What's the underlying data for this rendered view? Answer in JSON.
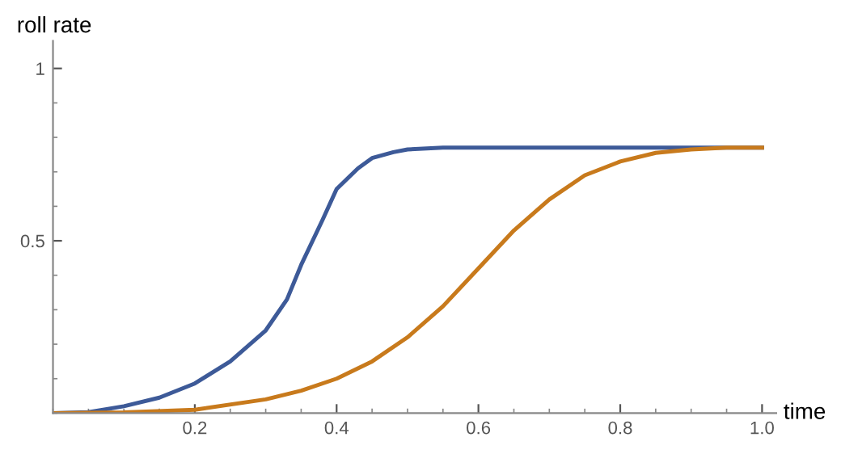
{
  "chart_data": {
    "type": "line",
    "xlabel": "time",
    "ylabel": "roll rate",
    "series": [
      {
        "color": "#3d5a98",
        "x": [
          0,
          0.05,
          0.1,
          0.15,
          0.2,
          0.25,
          0.3,
          0.33,
          0.35,
          0.38,
          0.4,
          0.43,
          0.45,
          0.48,
          0.5,
          0.55,
          0.6,
          0.7,
          0.8,
          0.9,
          1.0
        ],
        "values": [
          0,
          0.003,
          0.02,
          0.045,
          0.086,
          0.15,
          0.24,
          0.33,
          0.43,
          0.56,
          0.65,
          0.71,
          0.74,
          0.757,
          0.765,
          0.77,
          0.77,
          0.77,
          0.77,
          0.77,
          0.77
        ]
      },
      {
        "color": "#c87a1c",
        "x": [
          0,
          0.1,
          0.2,
          0.3,
          0.35,
          0.4,
          0.45,
          0.5,
          0.55,
          0.6,
          0.65,
          0.7,
          0.75,
          0.8,
          0.85,
          0.9,
          0.95,
          1.0
        ],
        "values": [
          0,
          0.002,
          0.01,
          0.04,
          0.065,
          0.1,
          0.15,
          0.22,
          0.31,
          0.42,
          0.53,
          0.62,
          0.69,
          0.73,
          0.755,
          0.765,
          0.77,
          0.77
        ]
      }
    ],
    "xlim": [
      0,
      1.02
    ],
    "ylim": [
      0,
      1.08
    ],
    "xticks": [
      0.2,
      0.4,
      0.6,
      0.8,
      {
        "value": 1,
        "label": "1.0"
      }
    ],
    "yticks": [
      0.5,
      1
    ],
    "grid": false,
    "legend": false,
    "marker": "none",
    "line_style": "solid"
  }
}
